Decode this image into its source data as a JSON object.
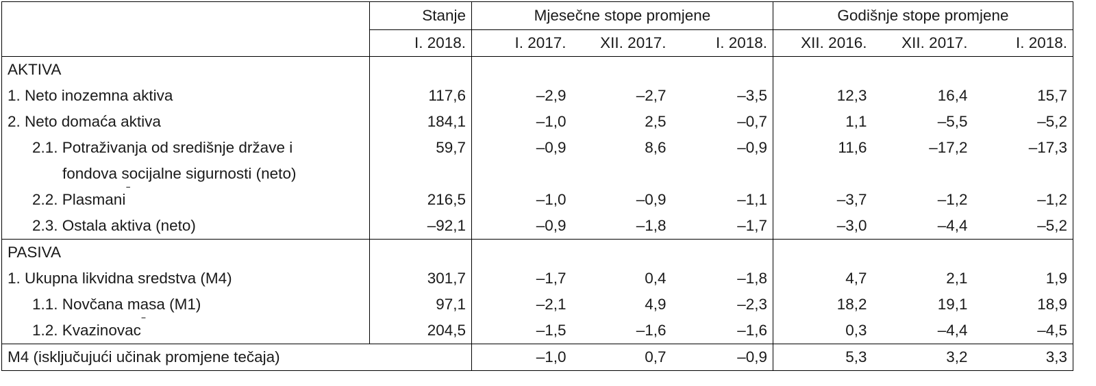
{
  "header": {
    "stanje": "Stanje",
    "mjesecne": "Mjesečne stope promjene",
    "godisnje": "Godišnje stope promjene",
    "periods": [
      "I. 2018.",
      "I. 2017.",
      "XII. 2017.",
      "I. 2018.",
      "XII. 2016.",
      "XII. 2017.",
      "I. 2018."
    ]
  },
  "sections": {
    "aktiva": "AKTIVA",
    "pasiva": "PASIVA"
  },
  "rows": {
    "r1": {
      "label": "1. Neto inozemna aktiva",
      "values": [
        "117,6",
        "–2,9",
        "–2,7",
        "–3,5",
        "12,3",
        "16,4",
        "15,7"
      ]
    },
    "r2": {
      "label": "2. Neto domaća aktiva",
      "values": [
        "184,1",
        "–1,0",
        "2,5",
        "–0,7",
        "1,1",
        "–5,5",
        "–5,2"
      ]
    },
    "r21": {
      "label_line1": "2.1. Potraživanja od središnje države i",
      "label_line2": "fondova socijalne sigurnosti (neto)",
      "values": [
        "59,7",
        "–0,9",
        "8,6",
        "–0,9",
        "11,6",
        "–17,2",
        "–17,3"
      ]
    },
    "r22": {
      "label": "2.2. Plasmani",
      "sup": "1",
      "values": [
        "216,5",
        "–1,0",
        "–0,9",
        "–1,1",
        "–3,7",
        "–1,2",
        "–1,2"
      ]
    },
    "r23": {
      "label": "2.3. Ostala aktiva (neto)",
      "values": [
        "–92,1",
        "–0,9",
        "–1,8",
        "–1,7",
        "–3,0",
        "–4,4",
        "–5,2"
      ]
    },
    "p1": {
      "label": "1. Ukupna likvidna sredstva (M4)",
      "values": [
        "301,7",
        "–1,7",
        "0,4",
        "–1,8",
        "4,7",
        "2,1",
        "1,9"
      ]
    },
    "p11": {
      "label": "1.1. Novčana masa (M1)",
      "values": [
        "97,1",
        "–2,1",
        "4,9",
        "–2,3",
        "18,2",
        "19,1",
        "18,9"
      ]
    },
    "p12": {
      "label": "1.2. Kvazinovac",
      "sup": "2",
      "values": [
        "204,5",
        "–1,5",
        "–1,6",
        "–1,6",
        "0,3",
        "–4,4",
        "–4,5"
      ]
    },
    "m4": {
      "label": "M4 (isključujući učinak promjene tečaja)",
      "values": [
        "",
        "–1,0",
        "0,7",
        "–0,9",
        "5,3",
        "3,2",
        "3,3"
      ]
    }
  }
}
